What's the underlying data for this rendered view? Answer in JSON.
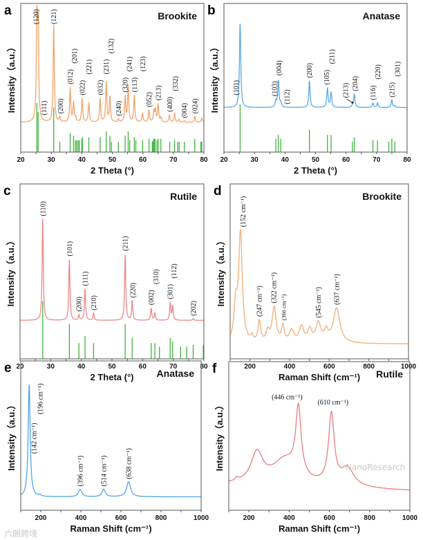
{
  "watermarks": [
    "六朗跨境",
    "NanoResearch"
  ],
  "chart_data": [
    {
      "panel": "a",
      "type": "line",
      "title": "Brookite",
      "xlabel": "2 Theta (°)",
      "ylabel": "Intensity（a.u.）",
      "xlim": [
        20,
        80
      ],
      "xticks": [
        20,
        30,
        40,
        50,
        60,
        70,
        80
      ],
      "minor_step": 5,
      "color": "#f3a36a",
      "stick_color": "#3fb23f",
      "peak_width": 0.22,
      "baseline": [
        0.2,
        0.2
      ],
      "peaks": [
        [
          25.3,
          0.68
        ],
        [
          25.7,
          0.58
        ],
        [
          30.8,
          0.65
        ],
        [
          32.8,
          0.03
        ],
        [
          36.2,
          0.23
        ],
        [
          37.3,
          0.13
        ],
        [
          38.0,
          0.03
        ],
        [
          40.1,
          0.16
        ],
        [
          42.3,
          0.13
        ],
        [
          46.0,
          0.16
        ],
        [
          48.0,
          0.27
        ],
        [
          49.2,
          0.17
        ],
        [
          52.0,
          0.02
        ],
        [
          54.2,
          0.17
        ],
        [
          55.2,
          0.24
        ],
        [
          57.2,
          0.18
        ],
        [
          59.9,
          0.06
        ],
        [
          62.0,
          0.08
        ],
        [
          63.6,
          0.07
        ],
        [
          64.1,
          0.08
        ],
        [
          65.0,
          0.12
        ],
        [
          65.9,
          0.03
        ],
        [
          68.7,
          0.05
        ],
        [
          70.4,
          0.06
        ],
        [
          71.9,
          0.02
        ],
        [
          73.6,
          0.01
        ],
        [
          77.0,
          0.04
        ],
        [
          79.3,
          0.03
        ]
      ],
      "sticks": [
        [
          25.3,
          0.33
        ],
        [
          25.7,
          0.27
        ],
        [
          30.8,
          0.3
        ],
        [
          32.8,
          0.07
        ],
        [
          36.2,
          0.13
        ],
        [
          37.3,
          0.11
        ],
        [
          37.9,
          0.08
        ],
        [
          38.3,
          0.08
        ],
        [
          38.8,
          0.08
        ],
        [
          39.2,
          0.08
        ],
        [
          40.0,
          0.09
        ],
        [
          40.2,
          0.1
        ],
        [
          42.3,
          0.1
        ],
        [
          46.0,
          0.1
        ],
        [
          48.0,
          0.14
        ],
        [
          49.2,
          0.11
        ],
        [
          49.7,
          0.07
        ],
        [
          52.0,
          0.07
        ],
        [
          54.2,
          0.11
        ],
        [
          55.2,
          0.14
        ],
        [
          55.7,
          0.08
        ],
        [
          57.2,
          0.1
        ],
        [
          57.7,
          0.08
        ],
        [
          59.9,
          0.08
        ],
        [
          62.0,
          0.09
        ],
        [
          63.1,
          0.07
        ],
        [
          63.4,
          0.08
        ],
        [
          63.7,
          0.09
        ],
        [
          64.0,
          0.09
        ],
        [
          64.6,
          0.08
        ],
        [
          65.0,
          0.09
        ],
        [
          65.9,
          0.09
        ],
        [
          68.8,
          0.07
        ],
        [
          70.4,
          0.08
        ],
        [
          71.4,
          0.07
        ],
        [
          71.9,
          0.07
        ],
        [
          73.6,
          0.07
        ],
        [
          77.0,
          0.09
        ],
        [
          79.0,
          0.07
        ],
        [
          79.3,
          0.07
        ]
      ],
      "annotations": [
        {
          "label": "(120)",
          "x": 25.0
        },
        {
          "label": "(111)",
          "x": 27.6
        },
        {
          "label": "(121)",
          "x": 30.8
        },
        {
          "label": "(200)",
          "x": 33.0
        },
        {
          "label": "(012)",
          "x": 36.2
        },
        {
          "label": "(201)",
          "x": 37.6
        },
        {
          "label": "(022)",
          "x": 40.1
        },
        {
          "label": "(221)",
          "x": 42.3
        },
        {
          "label": "(032)",
          "x": 46.0
        },
        {
          "label": "(231)",
          "x": 48.0
        },
        {
          "label": "(132)",
          "x": 49.5
        },
        {
          "label": "(240)",
          "x": 52.0
        },
        {
          "label": "(320)",
          "x": 54.2
        },
        {
          "label": "(241)",
          "x": 55.6
        },
        {
          "label": "(113)",
          "x": 57.3
        },
        {
          "label": "(123)",
          "x": 60.0
        },
        {
          "label": "(052)",
          "x": 62.0
        },
        {
          "label": "(213)",
          "x": 65.0
        },
        {
          "label": "(400)",
          "x": 68.8
        },
        {
          "label": "(332)",
          "x": 70.6
        },
        {
          "label": "(004)",
          "x": 73.6
        },
        {
          "label": "(024)",
          "x": 77.0
        }
      ]
    },
    {
      "panel": "b",
      "type": "line",
      "title": "Anatase",
      "xlabel": "2 Theta (°)",
      "ylabel": "Intensity（a.u.）",
      "xlim": [
        20,
        80
      ],
      "xticks": [
        20,
        30,
        40,
        50,
        60,
        70,
        80
      ],
      "minor_step": 5,
      "color": "#5aa6e6",
      "stick_color": "#3fb23f",
      "peak_width": 0.25,
      "baseline": [
        0.3,
        0.3
      ],
      "peaks": [
        [
          25.3,
          0.57
        ],
        [
          37.0,
          0.04
        ],
        [
          37.8,
          0.18
        ],
        [
          38.6,
          0.03
        ],
        [
          48.0,
          0.18
        ],
        [
          53.9,
          0.13
        ],
        [
          55.1,
          0.1
        ],
        [
          62.1,
          0.01
        ],
        [
          62.7,
          0.09
        ],
        [
          68.8,
          0.03
        ],
        [
          70.3,
          0.03
        ],
        [
          75.0,
          0.05
        ],
        [
          76.0,
          0.01
        ]
      ],
      "sticks": [
        [
          25.3,
          0.32
        ],
        [
          37.0,
          0.09
        ],
        [
          37.8,
          0.115
        ],
        [
          38.6,
          0.09
        ],
        [
          48.0,
          0.15
        ],
        [
          53.9,
          0.115
        ],
        [
          55.1,
          0.115
        ],
        [
          62.1,
          0.07
        ],
        [
          62.7,
          0.1
        ],
        [
          68.8,
          0.08
        ],
        [
          70.3,
          0.08
        ],
        [
          74.0,
          0.07
        ],
        [
          75.0,
          0.09
        ],
        [
          76.0,
          0.07
        ]
      ],
      "annotations": [
        {
          "label": "(101)",
          "x": 24.0
        },
        {
          "label": "(103)",
          "x": 36.5
        },
        {
          "label": "(004)",
          "x": 38.0
        },
        {
          "label": "(112)",
          "x": 40.6
        },
        {
          "label": "(200)",
          "x": 48.0
        },
        {
          "label": "(105)",
          "x": 53.6
        },
        {
          "label": "(211)",
          "x": 55.3
        },
        {
          "label": "(213)",
          "x": 59.8,
          "arrow_to": 62.1
        },
        {
          "label": "(204)",
          "x": 62.9
        },
        {
          "label": "(116)",
          "x": 68.8
        },
        {
          "label": "(220)",
          "x": 70.4
        },
        {
          "label": "(215)",
          "x": 75.0
        },
        {
          "label": "(301)",
          "x": 76.8
        }
      ]
    },
    {
      "panel": "c",
      "type": "line",
      "title": "Rutile",
      "xlabel": "2 Theta (°)",
      "ylabel": "Intensity（a.u.）",
      "xlim": [
        20,
        80
      ],
      "xticks": [
        20,
        30,
        40,
        50,
        60,
        70,
        80
      ],
      "minor_step": 5,
      "color": "#ee8585",
      "stick_color": "#3fb23f",
      "peak_width": 0.22,
      "baseline": [
        0.22,
        0.22
      ],
      "peaks": [
        [
          27.4,
          0.58
        ],
        [
          36.1,
          0.35
        ],
        [
          39.2,
          0.03
        ],
        [
          41.2,
          0.18
        ],
        [
          44.0,
          0.04
        ],
        [
          54.3,
          0.38
        ],
        [
          56.6,
          0.11
        ],
        [
          62.8,
          0.07
        ],
        [
          64.0,
          0.04
        ],
        [
          69.0,
          0.1
        ],
        [
          69.8,
          0.08
        ],
        [
          76.5,
          0.01
        ]
      ],
      "sticks": [
        [
          27.4,
          0.33
        ],
        [
          36.1,
          0.2
        ],
        [
          39.2,
          0.09
        ],
        [
          41.2,
          0.13
        ],
        [
          44.0,
          0.09
        ],
        [
          54.3,
          0.2
        ],
        [
          56.6,
          0.12
        ],
        [
          62.8,
          0.09
        ],
        [
          64.0,
          0.09
        ],
        [
          65.5,
          0.07
        ],
        [
          69.0,
          0.12
        ],
        [
          69.8,
          0.1
        ],
        [
          72.4,
          0.07
        ],
        [
          74.4,
          0.07
        ],
        [
          76.5,
          0.08
        ],
        [
          79.8,
          0.08
        ]
      ],
      "annotations": [
        {
          "label": "(110)",
          "x": 27.4
        },
        {
          "label": "(101)",
          "x": 36.1
        },
        {
          "label": "(200)",
          "x": 39.2
        },
        {
          "label": "(111)",
          "x": 41.2
        },
        {
          "label": "(210)",
          "x": 44.0
        },
        {
          "label": "(211)",
          "x": 54.3
        },
        {
          "label": "(220)",
          "x": 56.8
        },
        {
          "label": "(002)",
          "x": 62.8
        },
        {
          "label": "(310)",
          "x": 64.3
        },
        {
          "label": "(301)",
          "x": 68.9
        },
        {
          "label": "(112)",
          "x": 70.2
        },
        {
          "label": "(202)",
          "x": 76.5
        }
      ]
    },
    {
      "panel": "d",
      "type": "line",
      "title": "Brookite",
      "xlabel": "Raman Shift (cm⁻¹)",
      "ylabel": "Intensity（a.u.）",
      "xlim": [
        100,
        1000
      ],
      "xticks": [
        200,
        400,
        600,
        800,
        1000
      ],
      "minor_step": 100,
      "color": "#f4ad78",
      "peak_width": 12,
      "baseline": [
        0.085,
        0.085
      ],
      "peaks": [
        [
          128,
          0.2,
          10
        ],
        [
          152,
          0.62,
          11
        ],
        [
          210,
          0.03,
          6
        ],
        [
          247,
          0.12,
          8
        ],
        [
          290,
          0.06,
          10
        ],
        [
          322,
          0.2,
          12
        ],
        [
          366,
          0.09,
          8
        ],
        [
          410,
          0.07,
          14
        ],
        [
          460,
          0.09,
          14
        ],
        [
          502,
          0.07,
          12
        ],
        [
          545,
          0.11,
          15
        ],
        [
          585,
          0.06,
          12
        ],
        [
          637,
          0.2,
          20
        ]
      ],
      "annotations": [
        {
          "label": "(152 cm⁻¹)",
          "x": 165
        },
        {
          "label": "(247 cm⁻¹)",
          "x": 247
        },
        {
          "label": "(322 cm⁻¹)",
          "x": 320
        },
        {
          "label": "(366 cm⁻¹)",
          "x": 368,
          "small": true
        },
        {
          "label": "(545 cm⁻¹)",
          "x": 545
        },
        {
          "label": "(637 cm⁻¹)",
          "x": 637
        }
      ]
    },
    {
      "panel": "e",
      "type": "line",
      "title": "Anatase",
      "xlabel": "Raman Shift (cm⁻¹)",
      "ylabel": "Intensity（a.u.）",
      "xlim": [
        100,
        1000
      ],
      "xticks": [
        200,
        400,
        600,
        800,
        1000
      ],
      "minor_step": 100,
      "color": "#4ea2ea",
      "peak_width": 8,
      "baseline": [
        0.09,
        0.09
      ],
      "peaks": [
        [
          142,
          0.75,
          6
        ],
        [
          196,
          0.01,
          6
        ],
        [
          396,
          0.05,
          10
        ],
        [
          514,
          0.05,
          10
        ],
        [
          638,
          0.1,
          12
        ]
      ],
      "annotations": [
        {
          "label": "(142 cm⁻¹)",
          "x": 165
        },
        {
          "label": "(196 cm⁻¹)",
          "x": 196
        },
        {
          "label": "(396 cm⁻¹)",
          "x": 396
        },
        {
          "label": "(514 cm⁻¹)",
          "x": 514
        },
        {
          "label": "(638 cm⁻¹)",
          "x": 638
        }
      ]
    },
    {
      "panel": "f",
      "type": "line",
      "title": "Rutile",
      "xlabel": "Raman Shift (cm⁻¹)",
      "ylabel": "Intensity（a.u.）",
      "xlim": [
        100,
        1000
      ],
      "xticks": [
        200,
        400,
        600,
        800,
        1000
      ],
      "minor_step": 100,
      "color": "#ea7c7c",
      "peak_width": 16,
      "baseline": [
        0.17,
        0.13
      ],
      "peaks": [
        [
          140,
          0.02,
          8
        ],
        [
          240,
          0.2,
          35
        ],
        [
          380,
          0.17,
          80
        ],
        [
          446,
          0.45,
          16
        ],
        [
          610,
          0.47,
          17
        ],
        [
          690,
          0.12,
          40
        ]
      ],
      "annotations": [
        {
          "label": "(446 cm⁻¹)",
          "x": 446,
          "horizontal": true
        },
        {
          "label": "(610 cm⁻¹)",
          "x": 610,
          "horizontal": true
        }
      ]
    }
  ]
}
